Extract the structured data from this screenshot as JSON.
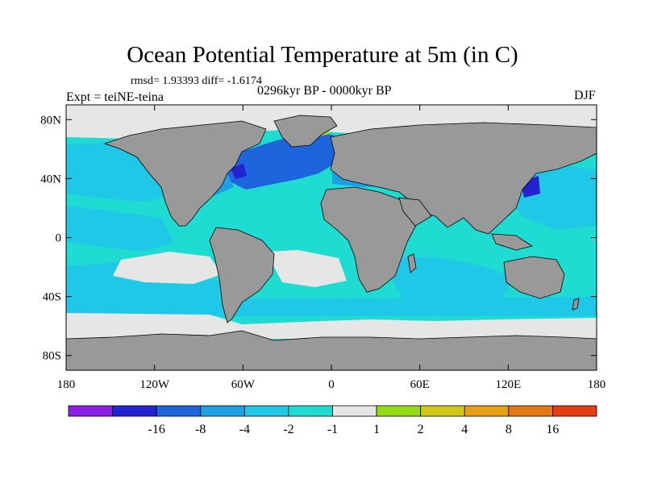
{
  "title": "Ocean Potential Temperature at 5m (in C)",
  "stats_text": "rmsd= 1.93393 diff= -1.6174",
  "experiment_label": "Expt = teiNE-teina",
  "period_label": "0296kyr BP - 0000kyr BP",
  "season_label": "DJF",
  "map": {
    "projection": "cylindrical equidistant",
    "lon_range": [
      -180,
      180
    ],
    "lat_range": [
      -90,
      90
    ],
    "land_color": "#999999",
    "x_ticks": [
      {
        "value": -180,
        "label": "180"
      },
      {
        "value": -120,
        "label": "120W"
      },
      {
        "value": -60,
        "label": "60W"
      },
      {
        "value": 0,
        "label": "0"
      },
      {
        "value": 60,
        "label": "60E"
      },
      {
        "value": 120,
        "label": "120E"
      },
      {
        "value": 180,
        "label": "180"
      }
    ],
    "y_ticks": [
      {
        "value": 80,
        "label": "80N"
      },
      {
        "value": 40,
        "label": "40N"
      },
      {
        "value": 0,
        "label": "0"
      },
      {
        "value": -40,
        "label": "40S"
      },
      {
        "value": -80,
        "label": "80S"
      }
    ]
  },
  "colorbar": {
    "colors": [
      "#8c1ee6",
      "#2323d2",
      "#1e64dc",
      "#1ea0e6",
      "#1ec8e6",
      "#1edcd2",
      "#e6e6e6",
      "#96dc14",
      "#d2c814",
      "#e6a014",
      "#e67814",
      "#e63c14"
    ],
    "labels": [
      "-16",
      "-8",
      "-4",
      "-2",
      "-1",
      "1",
      "2",
      "4",
      "8",
      "16"
    ]
  }
}
